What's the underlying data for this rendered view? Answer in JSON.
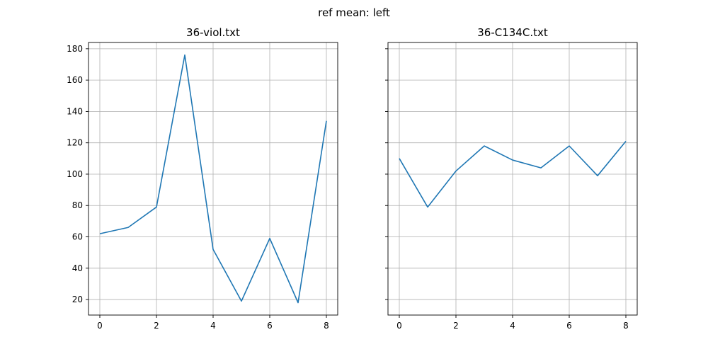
{
  "figure": {
    "suptitle": "ref mean: left"
  },
  "chart_data": [
    {
      "type": "line",
      "title": "36-viol.txt",
      "xlabel": "",
      "ylabel": "",
      "x": [
        0,
        1,
        2,
        3,
        4,
        5,
        6,
        7,
        8
      ],
      "series": [
        {
          "values": [
            62,
            66,
            79,
            176,
            52,
            19,
            59,
            18,
            134
          ],
          "color": "#1f77b4"
        }
      ],
      "xlim": [
        -0.4,
        8.4
      ],
      "ylim": [
        10.1,
        184.0
      ],
      "xticks": [
        0,
        2,
        4,
        6,
        8
      ],
      "yticks": [
        20,
        40,
        60,
        80,
        100,
        120,
        140,
        160,
        180
      ],
      "show_y_tick_labels": true,
      "grid": true
    },
    {
      "type": "line",
      "title": "36-C134C.txt",
      "xlabel": "",
      "ylabel": "",
      "x": [
        0,
        1,
        2,
        3,
        4,
        5,
        6,
        7,
        8
      ],
      "series": [
        {
          "values": [
            110,
            79,
            102,
            118,
            109,
            104,
            118,
            99,
            121
          ],
          "color": "#1f77b4"
        }
      ],
      "xlim": [
        -0.4,
        8.4
      ],
      "ylim": [
        10.1,
        184.0
      ],
      "xticks": [
        0,
        2,
        4,
        6,
        8
      ],
      "yticks": [
        20,
        40,
        60,
        80,
        100,
        120,
        140,
        160,
        180
      ],
      "show_y_tick_labels": false,
      "grid": true
    }
  ],
  "style": {
    "grid_color": "#b0b0b0",
    "axis_color": "#000000",
    "line_color": "#1f77b4"
  }
}
